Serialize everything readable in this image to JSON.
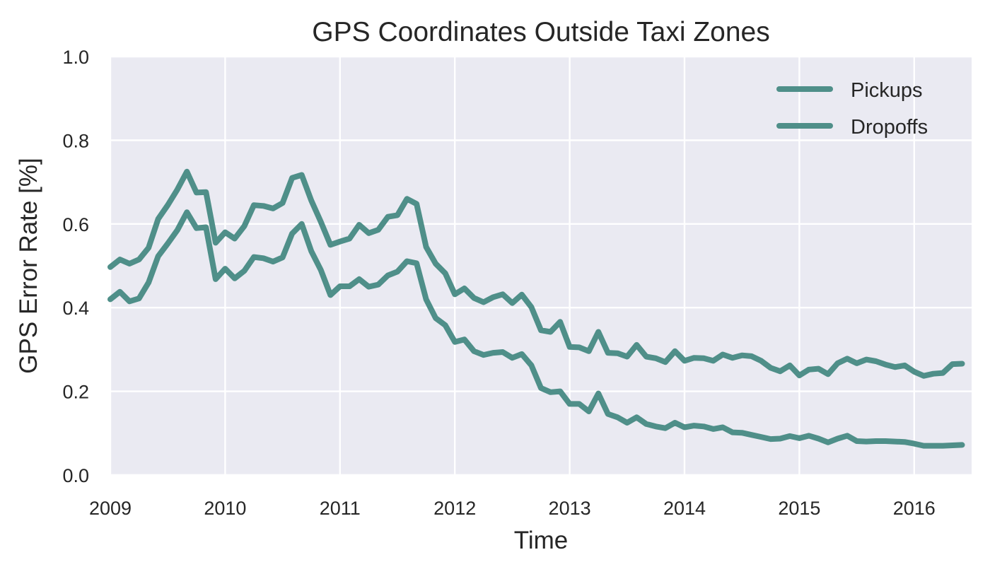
{
  "chart_data": {
    "type": "line",
    "title": "GPS Coordinates Outside Taxi Zones",
    "xlabel": "Time",
    "ylabel": "GPS Error Rate [%]",
    "xlim": [
      2009.0,
      2016.5
    ],
    "ylim": [
      0.0,
      1.0
    ],
    "xticks": [
      2009,
      2010,
      2011,
      2012,
      2013,
      2014,
      2015,
      2016
    ],
    "xtick_labels": [
      "2009",
      "2010",
      "2011",
      "2012",
      "2013",
      "2014",
      "2015",
      "2016"
    ],
    "yticks": [
      0.0,
      0.2,
      0.4,
      0.6,
      0.8,
      1.0
    ],
    "ytick_labels": [
      "0.0",
      "0.2",
      "0.4",
      "0.6",
      "0.8",
      "1.0"
    ],
    "grid": true,
    "legend_position": "top-right",
    "colors": {
      "series": "#4f8f89",
      "plot_bg": "#eaeaf2",
      "grid": "#ffffff",
      "text": "#262626"
    },
    "x": [
      2009.0,
      2009.0833,
      2009.1667,
      2009.25,
      2009.3333,
      2009.4167,
      2009.5,
      2009.5833,
      2009.6667,
      2009.75,
      2009.8333,
      2009.9167,
      2010.0,
      2010.0833,
      2010.1667,
      2010.25,
      2010.3333,
      2010.4167,
      2010.5,
      2010.5833,
      2010.6667,
      2010.75,
      2010.8333,
      2010.9167,
      2011.0,
      2011.0833,
      2011.1667,
      2011.25,
      2011.3333,
      2011.4167,
      2011.5,
      2011.5833,
      2011.6667,
      2011.75,
      2011.8333,
      2011.9167,
      2012.0,
      2012.0833,
      2012.1667,
      2012.25,
      2012.3333,
      2012.4167,
      2012.5,
      2012.5833,
      2012.6667,
      2012.75,
      2012.8333,
      2012.9167,
      2013.0,
      2013.0833,
      2013.1667,
      2013.25,
      2013.3333,
      2013.4167,
      2013.5,
      2013.5833,
      2013.6667,
      2013.75,
      2013.8333,
      2013.9167,
      2014.0,
      2014.0833,
      2014.1667,
      2014.25,
      2014.3333,
      2014.4167,
      2014.5,
      2014.5833,
      2014.6667,
      2014.75,
      2014.8333,
      2014.9167,
      2015.0,
      2015.0833,
      2015.1667,
      2015.25,
      2015.3333,
      2015.4167,
      2015.5,
      2015.5833,
      2015.6667,
      2015.75,
      2015.8333,
      2015.9167,
      2016.0,
      2016.0833,
      2016.1667,
      2016.25,
      2016.3333,
      2016.4167
    ],
    "series": [
      {
        "name": "Pickups",
        "values": [
          0.497,
          0.515,
          0.505,
          0.515,
          0.543,
          0.612,
          0.645,
          0.682,
          0.725,
          0.675,
          0.676,
          0.555,
          0.58,
          0.565,
          0.595,
          0.645,
          0.643,
          0.637,
          0.65,
          0.71,
          0.717,
          0.656,
          0.605,
          0.55,
          0.558,
          0.565,
          0.598,
          0.578,
          0.586,
          0.617,
          0.621,
          0.66,
          0.648,
          0.545,
          0.505,
          0.482,
          0.432,
          0.446,
          0.423,
          0.413,
          0.425,
          0.432,
          0.411,
          0.431,
          0.401,
          0.346,
          0.342,
          0.366,
          0.306,
          0.305,
          0.296,
          0.342,
          0.292,
          0.291,
          0.283,
          0.311,
          0.283,
          0.279,
          0.27,
          0.296,
          0.273,
          0.28,
          0.279,
          0.273,
          0.288,
          0.28,
          0.286,
          0.284,
          0.273,
          0.256,
          0.248,
          0.262,
          0.238,
          0.252,
          0.254,
          0.241,
          0.267,
          0.278,
          0.267,
          0.276,
          0.272,
          0.264,
          0.258,
          0.262,
          0.247,
          0.237,
          0.242,
          0.244,
          0.265,
          0.266
        ]
      },
      {
        "name": "Dropoffs",
        "values": [
          0.42,
          0.438,
          0.415,
          0.422,
          0.46,
          0.523,
          0.553,
          0.585,
          0.628,
          0.59,
          0.592,
          0.468,
          0.493,
          0.47,
          0.488,
          0.521,
          0.518,
          0.51,
          0.52,
          0.577,
          0.6,
          0.535,
          0.49,
          0.43,
          0.451,
          0.451,
          0.468,
          0.45,
          0.455,
          0.477,
          0.486,
          0.511,
          0.506,
          0.42,
          0.375,
          0.358,
          0.318,
          0.324,
          0.296,
          0.287,
          0.292,
          0.294,
          0.28,
          0.289,
          0.262,
          0.208,
          0.198,
          0.2,
          0.17,
          0.17,
          0.152,
          0.195,
          0.146,
          0.138,
          0.125,
          0.138,
          0.122,
          0.116,
          0.112,
          0.125,
          0.114,
          0.118,
          0.116,
          0.11,
          0.114,
          0.102,
          0.101,
          0.096,
          0.091,
          0.086,
          0.087,
          0.093,
          0.088,
          0.094,
          0.087,
          0.078,
          0.087,
          0.094,
          0.081,
          0.08,
          0.081,
          0.081,
          0.08,
          0.079,
          0.075,
          0.07,
          0.07,
          0.07,
          0.071,
          0.072
        ]
      }
    ]
  }
}
